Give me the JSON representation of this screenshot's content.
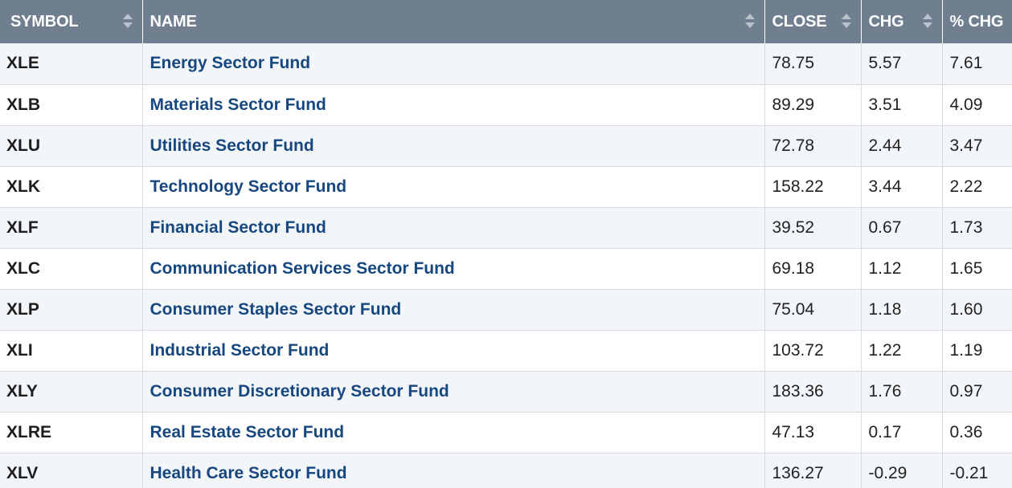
{
  "columns": {
    "symbol": "SYMBOL",
    "name": "NAME",
    "close": "CLOSE",
    "chg": "CHG",
    "pct_chg": "% CHG"
  },
  "icons": {
    "sort": "sort-arrows-icon"
  },
  "colors": {
    "header_bg": "#6f7f90",
    "link": "#16477f",
    "row_alt": "#f3f6f9"
  },
  "rows": [
    {
      "symbol": "XLE",
      "name": "Energy Sector Fund",
      "close": "78.75",
      "chg": "5.57",
      "pct": "7.61"
    },
    {
      "symbol": "XLB",
      "name": "Materials Sector Fund",
      "close": "89.29",
      "chg": "3.51",
      "pct": "4.09"
    },
    {
      "symbol": "XLU",
      "name": "Utilities Sector Fund",
      "close": "72.78",
      "chg": "2.44",
      "pct": "3.47"
    },
    {
      "symbol": "XLK",
      "name": "Technology Sector Fund",
      "close": "158.22",
      "chg": "3.44",
      "pct": "2.22"
    },
    {
      "symbol": "XLF",
      "name": "Financial Sector Fund",
      "close": "39.52",
      "chg": "0.67",
      "pct": "1.73"
    },
    {
      "symbol": "XLC",
      "name": "Communication Services Sector Fund",
      "close": "69.18",
      "chg": "1.12",
      "pct": "1.65"
    },
    {
      "symbol": "XLP",
      "name": "Consumer Staples Sector Fund",
      "close": "75.04",
      "chg": "1.18",
      "pct": "1.60"
    },
    {
      "symbol": "XLI",
      "name": "Industrial Sector Fund",
      "close": "103.72",
      "chg": "1.22",
      "pct": "1.19"
    },
    {
      "symbol": "XLY",
      "name": "Consumer Discretionary Sector Fund",
      "close": "183.36",
      "chg": "1.76",
      "pct": "0.97"
    },
    {
      "symbol": "XLRE",
      "name": "Real Estate Sector Fund",
      "close": "47.13",
      "chg": "0.17",
      "pct": "0.36"
    },
    {
      "symbol": "XLV",
      "name": "Health Care Sector Fund",
      "close": "136.27",
      "chg": "-0.29",
      "pct": "-0.21"
    }
  ]
}
